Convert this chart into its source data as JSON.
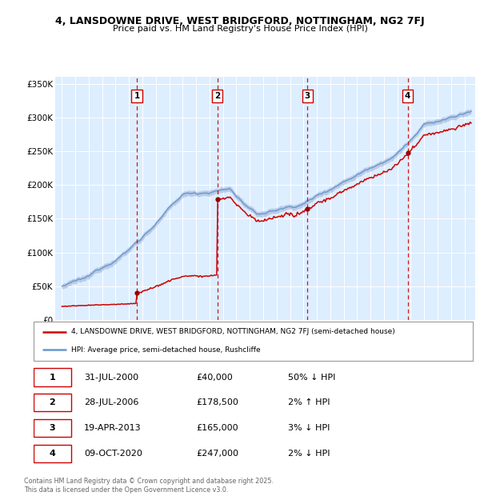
{
  "title1": "4, LANSDOWNE DRIVE, WEST BRIDGFORD, NOTTINGHAM, NG2 7FJ",
  "title2": "Price paid vs. HM Land Registry's House Price Index (HPI)",
  "bg_color": "#ddeeff",
  "hpi_color": "#6699cc",
  "hpi_fill_color": "#aabbdd",
  "price_color": "#cc0000",
  "sale_marker_color": "#990000",
  "vline_color": "#cc0000",
  "ylim": [
    0,
    360000
  ],
  "yticks": [
    0,
    50000,
    100000,
    150000,
    200000,
    250000,
    300000,
    350000
  ],
  "ytick_labels": [
    "£0",
    "£50K",
    "£100K",
    "£150K",
    "£200K",
    "£250K",
    "£300K",
    "£350K"
  ],
  "sale_dates_num": [
    2000.58,
    2006.58,
    2013.3,
    2020.77
  ],
  "sale_prices": [
    40000,
    178500,
    165000,
    247000
  ],
  "sale_labels": [
    "1",
    "2",
    "3",
    "4"
  ],
  "legend_line1": "4, LANSDOWNE DRIVE, WEST BRIDGFORD, NOTTINGHAM, NG2 7FJ (semi-detached house)",
  "legend_line2": "HPI: Average price, semi-detached house, Rushcliffe",
  "table_rows": [
    [
      "1",
      "31-JUL-2000",
      "£40,000",
      "50% ↓ HPI"
    ],
    [
      "2",
      "28-JUL-2006",
      "£178,500",
      "2% ↑ HPI"
    ],
    [
      "3",
      "19-APR-2013",
      "£165,000",
      "3% ↓ HPI"
    ],
    [
      "4",
      "09-OCT-2020",
      "£247,000",
      "2% ↓ HPI"
    ]
  ],
  "footer": "Contains HM Land Registry data © Crown copyright and database right 2025.\nThis data is licensed under the Open Government Licence v3.0."
}
